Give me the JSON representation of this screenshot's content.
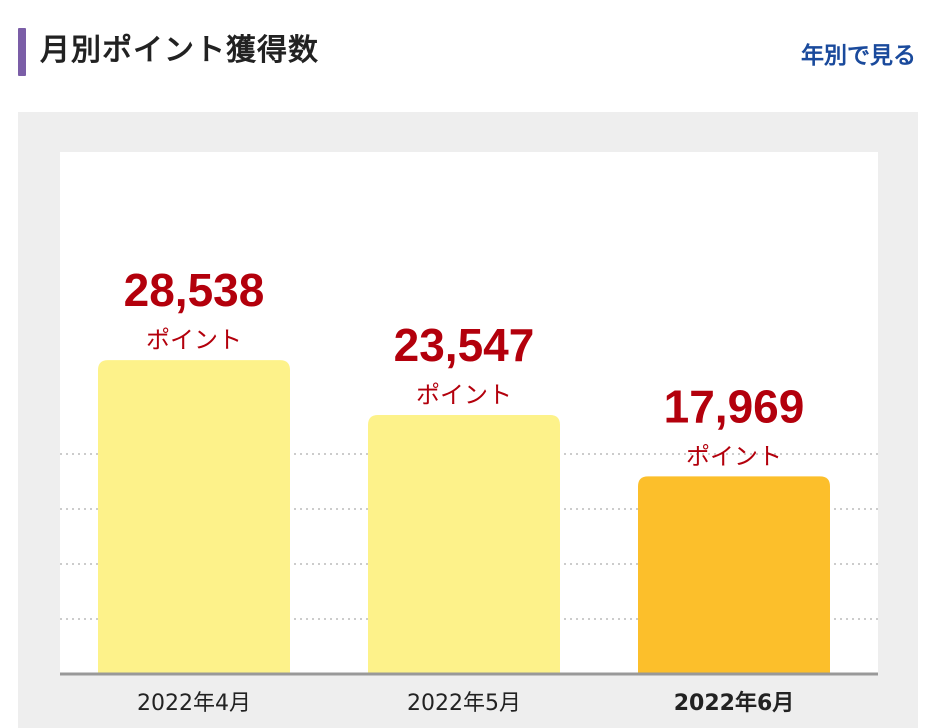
{
  "header": {
    "title": "月別ポイント獲得数",
    "year_link": "年別で見る"
  },
  "colors": {
    "accent_bar": "#7b5ea7",
    "link": "#1a4a9c",
    "bar_default": "#fdf28a",
    "bar_highlight": "#fcbf2b",
    "value_text": "#b3000c",
    "panel_bg": "#eeeeee",
    "plot_bg": "#ffffff",
    "gridline": "#cccccc",
    "baseline": "#999999"
  },
  "chart_data": {
    "type": "bar",
    "categories": [
      "2022年4月",
      "2022年5月",
      "2022年6月"
    ],
    "values": [
      28538,
      23547,
      17969
    ],
    "value_labels": [
      "28,538",
      "23,547",
      "17,969"
    ],
    "unit_label": "ポイント",
    "highlight_index": 2,
    "ylim": [
      0,
      40000
    ],
    "grid": true
  }
}
